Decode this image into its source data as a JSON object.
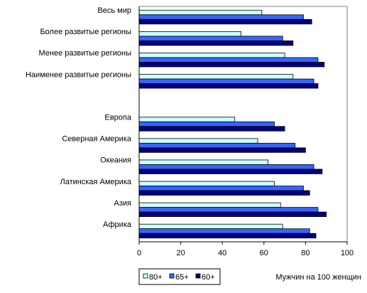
{
  "chart_data": {
    "type": "bar",
    "orientation": "horizontal",
    "categories": [
      "Весь мир",
      "Более развитые регионы",
      "Менее развитые регионы",
      "Наименее развитые регионы",
      "",
      "Европа",
      "Северная Америка",
      "Океания",
      "Латинская Америка",
      "Азия",
      "Африка"
    ],
    "series": [
      {
        "name": "80+",
        "color": "#ccffff",
        "values": [
          59,
          49,
          70,
          74,
          null,
          46,
          57,
          62,
          65,
          68,
          69
        ]
      },
      {
        "name": "65+",
        "color": "#3366ff",
        "values": [
          79,
          69,
          86,
          84,
          null,
          65,
          75,
          84,
          79,
          86,
          82
        ]
      },
      {
        "name": "60+",
        "color": "#000080",
        "values": [
          83,
          74,
          89,
          86,
          null,
          70,
          80,
          88,
          82,
          90,
          85
        ]
      }
    ],
    "xlim": [
      0,
      100
    ],
    "xticks": [
      0,
      20,
      40,
      60,
      80,
      100
    ],
    "xlabel": "Мужчин на 100 женщин",
    "ylabel": "",
    "title": "",
    "grid": false,
    "legend_position": "bottom-left"
  }
}
